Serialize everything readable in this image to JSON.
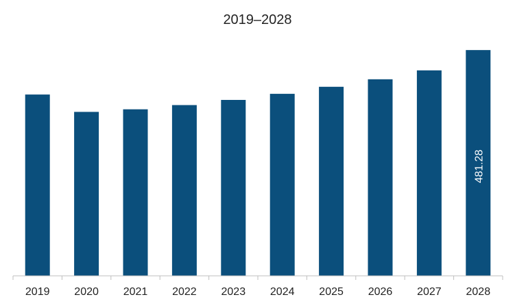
{
  "chart_data": {
    "type": "bar",
    "title": "2019–2028",
    "xlabel": "",
    "ylabel": "",
    "categories": [
      "2019",
      "2020",
      "2021",
      "2022",
      "2023",
      "2024",
      "2025",
      "2026",
      "2027",
      "2028"
    ],
    "values": [
      386.5,
      349.5,
      355.0,
      364.0,
      375.0,
      388.0,
      403.0,
      419.0,
      438.0,
      481.28
    ],
    "data_labels": [
      {
        "category": "2028",
        "text": "481.28"
      }
    ],
    "ylim": [
      0,
      588
    ],
    "grid": false,
    "legend": "none",
    "colors": {
      "bar": "#0b4f7c",
      "axis": "#bfbfbf"
    }
  }
}
